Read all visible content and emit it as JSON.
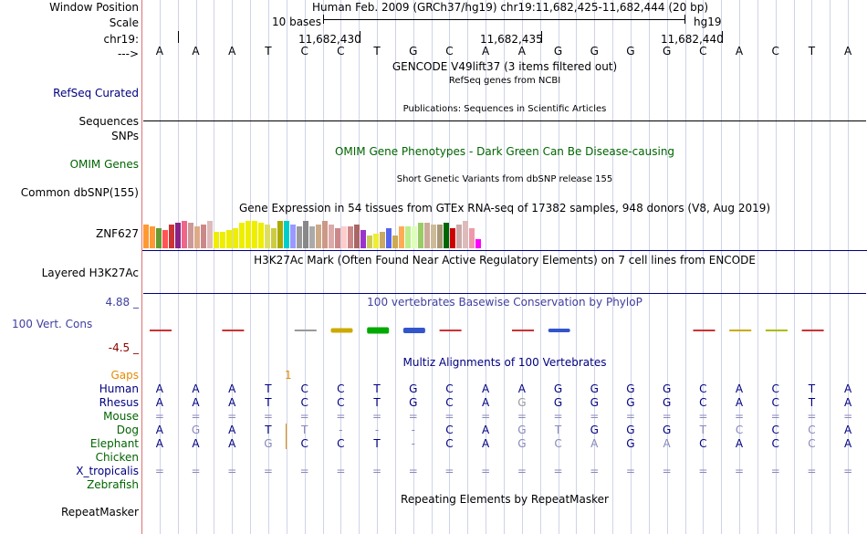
{
  "colors": {
    "navy": "#000080",
    "green": "#006400",
    "darkred": "#8b0000",
    "orange": "#e68a00",
    "cons_label": "#4040a0",
    "light_base": "#8888bb",
    "gray_base": "#999999"
  },
  "header": {
    "window_position_label": "Window Position",
    "window_position_value": "Human Feb. 2009 (GRCh37/hg19)   chr19:11,682,425-11,682,444 (20 bp)",
    "scale_label": "Scale",
    "scale_text": "10 bases",
    "scale_assembly": "hg19",
    "chrom_label": "chr19:",
    "ticks": [
      "11,682,430",
      "11,682,435",
      "11,682,440"
    ],
    "arrow_label": "--->",
    "sequence": [
      "A",
      "A",
      "A",
      "T",
      "C",
      "C",
      "T",
      "G",
      "C",
      "A",
      "A",
      "G",
      "G",
      "G",
      "G",
      "C",
      "A",
      "C",
      "T",
      "A"
    ]
  },
  "tracks": {
    "gencode_title": "GENCODE V49lift37 (3 items filtered out)",
    "refseq_title": "RefSeq genes from NCBI",
    "refseq_label": "RefSeq Curated",
    "pubs_title": "Publications: Sequences in Scientific Articles",
    "sequences_label": "Sequences",
    "snps_label": "SNPs",
    "omim_title": "OMIM Gene Phenotypes - Dark Green Can Be Disease-causing",
    "omim_label": "OMIM Genes",
    "dbsnp_title": "Short Genetic Variants from dbSNP release 155",
    "dbsnp_label": "Common dbSNP(155)",
    "gtex_title": "Gene Expression in 54 tissues from GTEx RNA-seq of 17382 samples, 948 donors (V8, Aug 2019)",
    "gtex_gene": "ZNF627",
    "h3k27ac_title": "H3K27Ac Mark (Often Found Near Active Regulatory Elements) on 7 cell lines from ENCODE",
    "h3k27ac_label": "Layered H3K27Ac",
    "phylop_title": "100 vertebrates Basewise Conservation by PhyloP",
    "phylop_label": "100 Vert. Cons",
    "phylop_max": "4.88 _",
    "phylop_min": "-4.5 _",
    "multiz_title": "Multiz Alignments of 100 Vertebrates",
    "rmsk_title": "Repeating Elements by RepeatMasker",
    "rmsk_label": "RepeatMasker"
  },
  "gtex_heights": [
    26,
    24,
    22,
    20,
    26,
    28,
    30,
    28,
    24,
    26,
    30,
    18,
    18,
    20,
    22,
    28,
    30,
    30,
    28,
    26,
    22,
    30,
    30,
    26,
    24,
    30,
    24,
    26,
    30,
    26,
    22,
    24,
    24,
    26,
    20,
    14,
    16,
    18,
    22,
    14,
    24,
    24,
    24,
    28,
    28,
    26,
    26,
    28,
    22,
    26,
    30,
    22,
    10
  ],
  "gtex_colors": [
    "#ff9933",
    "#ff9933",
    "#669933",
    "#ff5555",
    "#cc3333",
    "#882288",
    "#ee6688",
    "#cc9999",
    "#ddaa88",
    "#cc8888",
    "#ddbbbb",
    "#eeee00",
    "#eeee00",
    "#eeee00",
    "#eeee00",
    "#eeee00",
    "#eeee00",
    "#eeee00",
    "#eeee00",
    "#dddd66",
    "#cccc44",
    "#aaaa00",
    "#00cccc",
    "#9999ff",
    "#999999",
    "#888888",
    "#aaaaaa",
    "#ccaa88",
    "#cc9988",
    "#ddaaaa",
    "#cc8888",
    "#ffcccc",
    "#cc8888",
    "#aa6666",
    "#9933cc",
    "#cccc55",
    "#eeee33",
    "#ccaa66",
    "#5566ee",
    "#ccaa55",
    "#ffaa55",
    "#bbee88",
    "#ddffbb",
    "#99cc66",
    "#ccaa99",
    "#ccbb99",
    "#aa9977",
    "#006600",
    "#cc0000",
    "#ccaaaa",
    "#ddbbbb",
    "#ee99aa",
    "#ff00ff"
  ],
  "phylop_glyphs": [
    {
      "pos": 0,
      "color": "#cc3333",
      "h": 2
    },
    {
      "pos": 2,
      "color": "#cc3333",
      "h": 2
    },
    {
      "pos": 4,
      "color": "#999999",
      "h": 2
    },
    {
      "pos": 5,
      "color": "#ccaa00",
      "h": 5
    },
    {
      "pos": 6,
      "color": "#00aa00",
      "h": 7
    },
    {
      "pos": 7,
      "color": "#3355cc",
      "h": 6
    },
    {
      "pos": 8,
      "color": "#cc3333",
      "h": 2
    },
    {
      "pos": 10,
      "color": "#cc3333",
      "h": 2
    },
    {
      "pos": 11,
      "color": "#3355cc",
      "h": 4
    },
    {
      "pos": 15,
      "color": "#cc3333",
      "h": 2
    },
    {
      "pos": 16,
      "color": "#ccaa00",
      "h": 2
    },
    {
      "pos": 17,
      "color": "#aabb00",
      "h": 2
    },
    {
      "pos": 18,
      "color": "#cc3333",
      "h": 2
    }
  ],
  "multiz": {
    "gaps_label": "Gaps",
    "gap_count": "1",
    "species": [
      {
        "name": "Human",
        "color": "#000080",
        "bases": [
          "A",
          "A",
          "A",
          "T",
          "C",
          "C",
          "T",
          "G",
          "C",
          "A",
          "A",
          "G",
          "G",
          "G",
          "G",
          "C",
          "A",
          "C",
          "T",
          "A"
        ],
        "faint": []
      },
      {
        "name": "Rhesus",
        "color": "#000080",
        "bases": [
          "A",
          "A",
          "A",
          "T",
          "C",
          "C",
          "T",
          "G",
          "C",
          "A",
          "G",
          "G",
          "G",
          "G",
          "G",
          "C",
          "A",
          "C",
          "T",
          "A"
        ],
        "faint": [
          10
        ]
      },
      {
        "name": "Mouse",
        "color": "#006400",
        "bases": [
          "=",
          "=",
          "=",
          "=",
          "=",
          "=",
          "=",
          "=",
          "=",
          "=",
          "=",
          "=",
          "=",
          "=",
          "=",
          "=",
          "=",
          "=",
          "=",
          "="
        ],
        "faint": []
      },
      {
        "name": "Dog",
        "color": "#006400",
        "bases": [
          "A",
          "G",
          "A",
          "T",
          "T",
          "-",
          "-",
          "-",
          "C",
          "A",
          "G",
          "T",
          "G",
          "G",
          "G",
          "T",
          "C",
          "C",
          "C",
          "A"
        ],
        "faint": [
          1,
          4,
          5,
          6,
          7,
          10,
          11,
          15,
          16,
          18
        ]
      },
      {
        "name": "Elephant",
        "color": "#006400",
        "bases": [
          "A",
          "A",
          "A",
          "G",
          "C",
          "C",
          "T",
          "-",
          "C",
          "A",
          "G",
          "C",
          "A",
          "G",
          "A",
          "C",
          "A",
          "C",
          "C",
          "A"
        ],
        "faint": [
          3,
          7,
          10,
          11,
          12,
          14,
          18
        ]
      },
      {
        "name": "Chicken",
        "color": "#006400",
        "bases": [],
        "faint": []
      },
      {
        "name": "X_tropicalis",
        "color": "#000080",
        "bases": [
          "=",
          "=",
          "=",
          "=",
          "=",
          "=",
          "=",
          "=",
          "=",
          "=",
          "=",
          "=",
          "=",
          "=",
          "=",
          "=",
          "=",
          "=",
          "=",
          "="
        ],
        "faint": []
      },
      {
        "name": "Zebrafish",
        "color": "#006400",
        "bases": [],
        "faint": []
      }
    ]
  }
}
